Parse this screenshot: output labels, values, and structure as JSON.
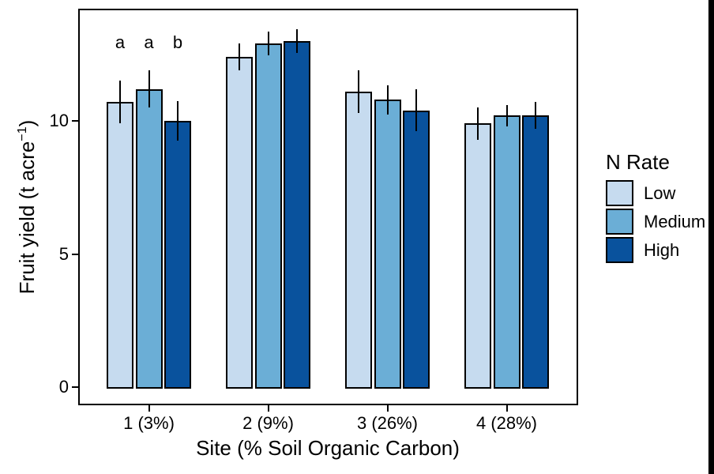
{
  "window": {
    "background": "#ffffff",
    "right_edge_color": "#000000"
  },
  "chart_data": {
    "type": "bar",
    "title": "",
    "xlabel": "Site (% Soil Organic Carbon)",
    "ylabel": "Fruit yield (t acre⁻¹)",
    "ylabel_parts": {
      "main": "Fruit yield (t acre",
      "sup": "−1",
      "close": ")"
    },
    "categories": [
      "1 (3%)",
      "2 (9%)",
      "3 (26%)",
      "4 (28%)"
    ],
    "series": [
      {
        "name": "Low",
        "color": "#c6dbef",
        "values": [
          10.7,
          12.4,
          11.1,
          9.9
        ],
        "errors": [
          0.8,
          0.5,
          0.8,
          0.6
        ]
      },
      {
        "name": "Medium",
        "color": "#6baed6",
        "values": [
          11.2,
          12.9,
          10.8,
          10.2
        ],
        "errors": [
          0.7,
          0.45,
          0.55,
          0.4
        ]
      },
      {
        "name": "High",
        "color": "#09529d",
        "values": [
          10.0,
          13.0,
          10.4,
          10.2
        ],
        "errors": [
          0.75,
          0.45,
          0.8,
          0.5
        ]
      }
    ],
    "yticks": [
      "0",
      "5",
      "10"
    ],
    "ytick_values": [
      0,
      5,
      10
    ],
    "ylim": [
      -0.7,
      14.2
    ],
    "grid": false,
    "bar_outline_color": "#000000",
    "error_bar_style": "vertical line, no caps",
    "legend_position": "right",
    "annotations": [
      {
        "text": "a",
        "site_index": 0,
        "series_index": 0
      },
      {
        "text": "a",
        "site_index": 0,
        "series_index": 1
      },
      {
        "text": "b",
        "site_index": 0,
        "series_index": 2
      }
    ]
  },
  "legend": {
    "title": "N Rate",
    "items": [
      {
        "label": "Low",
        "color": "#c6dbef"
      },
      {
        "label": "Medium",
        "color": "#6baed6"
      },
      {
        "label": "High",
        "color": "#09529d"
      }
    ]
  }
}
